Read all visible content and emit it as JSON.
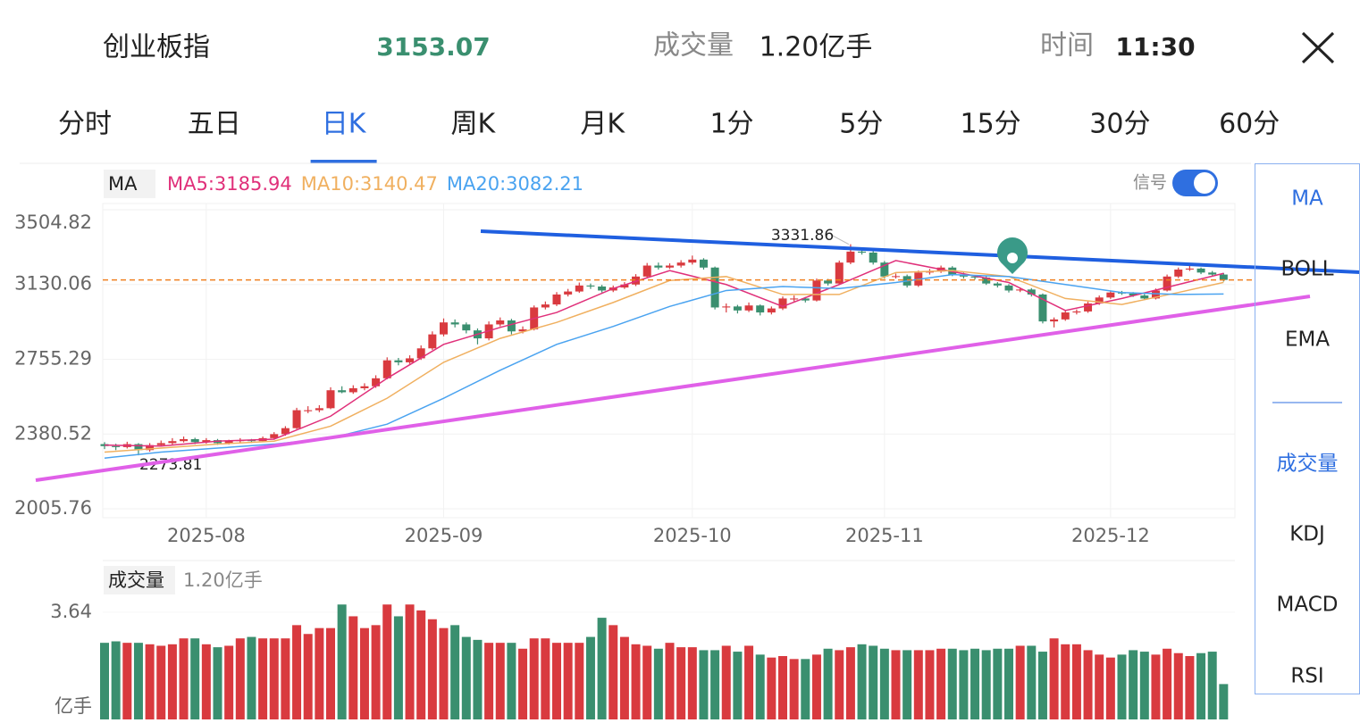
{
  "header": {
    "name": "创业板指",
    "price": "3153.07",
    "volume_label": "成交量",
    "volume": "1.20亿手",
    "time_label": "时间",
    "time": "11:30"
  },
  "tabs": [
    "分时",
    "五日",
    "日K",
    "周K",
    "月K",
    "1分",
    "5分",
    "15分",
    "30分",
    "60分"
  ],
  "active_tab": 2,
  "indicators": [
    "MA",
    "BOLL",
    "EMA",
    "成交量",
    "KDJ",
    "MACD",
    "RSI"
  ],
  "active_indicators": [
    0,
    3
  ],
  "signal_label": "信号",
  "chart_data": [
    {
      "type": "candlestick",
      "indicator_label": "MA",
      "categories": [
        null,
        null,
        null,
        null,
        null,
        null,
        null,
        null,
        null,
        "2025-08",
        null,
        null,
        null,
        null,
        null,
        null,
        null,
        null,
        null,
        null,
        null,
        null,
        null,
        null,
        null,
        null,
        null,
        null,
        null,
        null,
        "2025-09",
        null,
        null,
        null,
        null,
        null,
        null,
        null,
        null,
        null,
        null,
        null,
        null,
        null,
        null,
        null,
        null,
        null,
        null,
        null,
        null,
        null,
        "2025-10",
        null,
        null,
        null,
        null,
        null,
        null,
        null,
        null,
        null,
        null,
        null,
        null,
        null,
        null,
        null,
        null,
        "2025-11",
        null,
        null,
        null,
        null,
        null,
        null,
        null,
        null,
        null,
        null,
        null,
        null,
        null,
        null,
        null,
        null,
        null,
        null,
        null,
        "2025-12",
        null,
        null,
        null,
        null,
        null,
        null,
        null,
        null,
        null,
        null
      ],
      "candles": [
        [
          2330,
          2340,
          2305,
          2320
        ],
        [
          2320,
          2332,
          2300,
          2315
        ],
        [
          2315,
          2342,
          2308,
          2330
        ],
        [
          2330,
          2335,
          2273.81,
          2300
        ],
        [
          2300,
          2335,
          2292,
          2325
        ],
        [
          2325,
          2348,
          2318,
          2335
        ],
        [
          2335,
          2360,
          2328,
          2345
        ],
        [
          2345,
          2368,
          2338,
          2355
        ],
        [
          2355,
          2362,
          2330,
          2340
        ],
        [
          2340,
          2360,
          2332,
          2350
        ],
        [
          2350,
          2356,
          2326,
          2335
        ],
        [
          2335,
          2352,
          2328,
          2345
        ],
        [
          2345,
          2360,
          2338,
          2350
        ],
        [
          2350,
          2356,
          2336,
          2345
        ],
        [
          2345,
          2368,
          2340,
          2360
        ],
        [
          2360,
          2390,
          2352,
          2380
        ],
        [
          2380,
          2420,
          2372,
          2410
        ],
        [
          2410,
          2512,
          2405,
          2500
        ],
        [
          2495,
          2520,
          2485,
          2500
        ],
        [
          2500,
          2525,
          2490,
          2510
        ],
        [
          2510,
          2615,
          2505,
          2600
        ],
        [
          2600,
          2620,
          2585,
          2590
        ],
        [
          2590,
          2625,
          2582,
          2610
        ],
        [
          2610,
          2635,
          2600,
          2620
        ],
        [
          2620,
          2675,
          2612,
          2660
        ],
        [
          2660,
          2765,
          2655,
          2750
        ],
        [
          2750,
          2762,
          2725,
          2740
        ],
        [
          2740,
          2775,
          2732,
          2760
        ],
        [
          2760,
          2825,
          2752,
          2810
        ],
        [
          2810,
          2895,
          2802,
          2880
        ],
        [
          2880,
          2960,
          2870,
          2940
        ],
        [
          2940,
          2955,
          2915,
          2930
        ],
        [
          2930,
          2940,
          2885,
          2900
        ],
        [
          2900,
          2910,
          2830,
          2860
        ],
        [
          2860,
          2945,
          2850,
          2930
        ],
        [
          2930,
          2965,
          2920,
          2950
        ],
        [
          2950,
          2958,
          2880,
          2895
        ],
        [
          2895,
          2920,
          2885,
          2905
        ],
        [
          2905,
          3025,
          2900,
          3015
        ],
        [
          3015,
          3045,
          3005,
          3030
        ],
        [
          3030,
          3092,
          3022,
          3080
        ],
        [
          3080,
          3108,
          3070,
          3095
        ],
        [
          3095,
          3140,
          3088,
          3125
        ],
        [
          3125,
          3135,
          3108,
          3120
        ],
        [
          3120,
          3128,
          3090,
          3100
        ],
        [
          3100,
          3125,
          3092,
          3115
        ],
        [
          3115,
          3142,
          3108,
          3130
        ],
        [
          3130,
          3182,
          3122,
          3170
        ],
        [
          3170,
          3238,
          3162,
          3225
        ],
        [
          3225,
          3240,
          3205,
          3215
        ],
        [
          3215,
          3236,
          3208,
          3225
        ],
        [
          3225,
          3252,
          3215,
          3240
        ],
        [
          3240,
          3275,
          3230,
          3255
        ],
        [
          3255,
          3262,
          3205,
          3215
        ],
        [
          3215,
          3220,
          3005,
          3015
        ],
        [
          3015,
          3035,
          2990,
          3020
        ],
        [
          3020,
          3028,
          2985,
          3000
        ],
        [
          3000,
          3040,
          2992,
          3025
        ],
        [
          3025,
          3030,
          2975,
          2990
        ],
        [
          2990,
          3020,
          2980,
          3010
        ],
        [
          3010,
          3070,
          3002,
          3060
        ],
        [
          3055,
          3075,
          3045,
          3060
        ],
        [
          3060,
          3068,
          3040,
          3050
        ],
        [
          3050,
          3160,
          3045,
          3150
        ],
        [
          3150,
          3158,
          3125,
          3135
        ],
        [
          3135,
          3250,
          3130,
          3240
        ],
        [
          3240,
          3331.86,
          3232,
          3295
        ],
        [
          3295,
          3310,
          3280,
          3290
        ],
        [
          3290,
          3298,
          3230,
          3240
        ],
        [
          3240,
          3248,
          3160,
          3170
        ],
        [
          3170,
          3185,
          3160,
          3172
        ],
        [
          3172,
          3180,
          3115,
          3125
        ],
        [
          3125,
          3200,
          3118,
          3190
        ],
        [
          3190,
          3208,
          3180,
          3195
        ],
        [
          3195,
          3225,
          3188,
          3215
        ],
        [
          3215,
          3222,
          3172,
          3180
        ],
        [
          3180,
          3190,
          3160,
          3170
        ],
        [
          3170,
          3178,
          3155,
          3165
        ],
        [
          3165,
          3172,
          3128,
          3135
        ],
        [
          3135,
          3142,
          3115,
          3125
        ],
        [
          3125,
          3132,
          3090,
          3100
        ],
        [
          3100,
          3115,
          3092,
          3105
        ],
        [
          3105,
          3112,
          3070,
          3080
        ],
        [
          3080,
          3085,
          2935,
          2945
        ],
        [
          2945,
          2965,
          2915,
          2955
        ],
        [
          2955,
          3000,
          2948,
          2990
        ],
        [
          2990,
          3005,
          2980,
          2995
        ],
        [
          2995,
          3045,
          2988,
          3035
        ],
        [
          3035,
          3075,
          3028,
          3065
        ],
        [
          3065,
          3100,
          3058,
          3090
        ],
        [
          3090,
          3098,
          3078,
          3085
        ],
        [
          3085,
          3092,
          3068,
          3075
        ],
        [
          3075,
          3082,
          3052,
          3060
        ],
        [
          3060,
          3110,
          3055,
          3100
        ],
        [
          3100,
          3180,
          3095,
          3170
        ],
        [
          3170,
          3215,
          3162,
          3205
        ],
        [
          3205,
          3225,
          3198,
          3210
        ],
        [
          3210,
          3215,
          3182,
          3190
        ],
        [
          3190,
          3198,
          3172,
          3180
        ],
        [
          3180,
          3188,
          3145,
          3153.07
        ]
      ],
      "up_color": "#d93a3f",
      "down_color": "#3a8f6f",
      "series": [
        {
          "name": "MA5:3185.94",
          "color": "#e0307a",
          "x": [
            0,
            5,
            10,
            15,
            20,
            25,
            30,
            35,
            40,
            45,
            50,
            55,
            60,
            65,
            70,
            75,
            80,
            85,
            90,
            95,
            99
          ],
          "values": [
            2325,
            2320,
            2345,
            2355,
            2470,
            2660,
            2830,
            2915,
            2990,
            3110,
            3200,
            3130,
            3020,
            3130,
            3250,
            3195,
            3140,
            3000,
            3060,
            3130,
            3185.94
          ]
        },
        {
          "name": "MA10:3140.47",
          "color": "#f0b060",
          "x": [
            0,
            5,
            10,
            15,
            20,
            25,
            30,
            35,
            40,
            45,
            50,
            55,
            60,
            65,
            70,
            75,
            80,
            85,
            90,
            95,
            99
          ],
          "values": [
            2290,
            2310,
            2330,
            2345,
            2420,
            2560,
            2740,
            2860,
            2940,
            3040,
            3150,
            3170,
            3080,
            3080,
            3190,
            3200,
            3170,
            3060,
            3030,
            3090,
            3140.47
          ]
        },
        {
          "name": "MA20:3082.21",
          "color": "#4aa3f0",
          "x": [
            0,
            5,
            10,
            15,
            20,
            25,
            30,
            35,
            40,
            45,
            50,
            55,
            60,
            65,
            70,
            75,
            80,
            85,
            90,
            95,
            99
          ],
          "values": [
            2260,
            2290,
            2310,
            2330,
            2360,
            2430,
            2560,
            2700,
            2830,
            2920,
            3020,
            3100,
            3120,
            3110,
            3140,
            3180,
            3170,
            3130,
            3090,
            3080,
            3082.21
          ]
        }
      ],
      "price_line": true,
      "high_label_candle": 66,
      "low_label_candle": 3,
      "ylim": [
        1961.15,
        3536.05
      ],
      "yticks": [
        3504.82,
        3130.06,
        2755.29,
        2380.52,
        2005.76
      ],
      "grid": true
    },
    {
      "type": "bar",
      "title": "成交量",
      "subtitle": "1.20亿手",
      "unit": "亿手",
      "values": [
        2.6,
        2.65,
        2.6,
        2.6,
        2.55,
        2.5,
        2.55,
        2.75,
        2.75,
        2.55,
        2.45,
        2.5,
        2.75,
        2.8,
        2.75,
        2.75,
        2.75,
        3.2,
        2.9,
        3.1,
        3.1,
        3.9,
        3.5,
        3.1,
        3.2,
        3.9,
        3.5,
        3.9,
        3.7,
        3.4,
        3.1,
        3.2,
        2.8,
        2.7,
        2.6,
        2.6,
        2.6,
        2.4,
        2.75,
        2.75,
        2.6,
        2.6,
        2.6,
        2.8,
        3.45,
        3.2,
        2.8,
        2.55,
        2.5,
        2.4,
        2.6,
        2.45,
        2.45,
        2.35,
        2.35,
        2.5,
        2.3,
        2.5,
        2.2,
        2.1,
        2.15,
        2.05,
        2.05,
        2.2,
        2.4,
        2.35,
        2.45,
        2.55,
        2.5,
        2.4,
        2.35,
        2.35,
        2.35,
        2.35,
        2.4,
        2.4,
        2.35,
        2.4,
        2.35,
        2.4,
        2.4,
        2.5,
        2.5,
        2.3,
        2.75,
        2.55,
        2.55,
        2.35,
        2.2,
        2.1,
        2.2,
        2.35,
        2.3,
        2.2,
        2.4,
        2.25,
        2.15,
        2.25,
        2.3,
        1.2
      ],
      "ylim": [
        0,
        4.18
      ],
      "yticks": [
        3.64
      ]
    }
  ]
}
